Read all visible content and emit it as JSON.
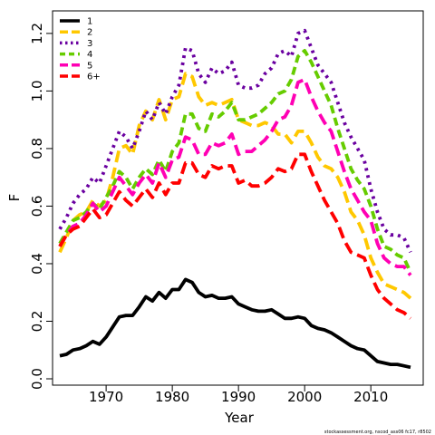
{
  "chart_data": {
    "type": "line",
    "title": "",
    "xlabel": "Year",
    "ylabel": "F",
    "xlim": [
      1963,
      2016
    ],
    "ylim": [
      0,
      1.25
    ],
    "x_ticks": [
      1970,
      1980,
      1990,
      2000,
      2010
    ],
    "y_ticks": [
      0.0,
      0.2,
      0.4,
      0.6,
      0.8,
      1.0,
      1.2
    ],
    "y_tick_labels": [
      "0.0",
      "0.2",
      "0.4",
      "0.6",
      "0.8",
      "1.0",
      "1.2"
    ],
    "grid": false,
    "legend_position": "top-left",
    "footnote": "stockassessment.org,  nscod_ass06  fc17, r8502",
    "series": [
      {
        "name": "1",
        "color": "#000000",
        "dash": "solid",
        "x": [
          1963,
          1964,
          1965,
          1966,
          1967,
          1968,
          1969,
          1970,
          1971,
          1972,
          1973,
          1974,
          1975,
          1976,
          1977,
          1978,
          1979,
          1980,
          1981,
          1982,
          1983,
          1984,
          1985,
          1986,
          1987,
          1988,
          1989,
          1990,
          1991,
          1992,
          1993,
          1994,
          1995,
          1996,
          1997,
          1998,
          1999,
          2000,
          2001,
          2002,
          2003,
          2004,
          2005,
          2006,
          2007,
          2008,
          2009,
          2010,
          2011,
          2012,
          2013,
          2014,
          2015,
          2016
        ],
        "y": [
          0.08,
          0.085,
          0.1,
          0.105,
          0.115,
          0.13,
          0.12,
          0.145,
          0.18,
          0.215,
          0.22,
          0.22,
          0.25,
          0.285,
          0.27,
          0.3,
          0.28,
          0.31,
          0.31,
          0.345,
          0.335,
          0.3,
          0.285,
          0.29,
          0.28,
          0.28,
          0.285,
          0.26,
          0.25,
          0.24,
          0.235,
          0.235,
          0.24,
          0.225,
          0.21,
          0.21,
          0.215,
          0.21,
          0.185,
          0.175,
          0.17,
          0.16,
          0.145,
          0.13,
          0.115,
          0.105,
          0.1,
          0.08,
          0.06,
          0.055,
          0.05,
          0.05,
          0.045,
          0.04
        ]
      },
      {
        "name": "2",
        "color": "#FFC800",
        "dash": "long",
        "x": [
          1963,
          1964,
          1965,
          1966,
          1967,
          1968,
          1969,
          1970,
          1971,
          1972,
          1973,
          1974,
          1975,
          1976,
          1977,
          1978,
          1979,
          1980,
          1981,
          1982,
          1983,
          1984,
          1985,
          1986,
          1987,
          1988,
          1989,
          1990,
          1991,
          1992,
          1993,
          1994,
          1995,
          1996,
          1997,
          1998,
          1999,
          2000,
          2001,
          2002,
          2003,
          2004,
          2005,
          2006,
          2007,
          2008,
          2009,
          2010,
          2011,
          2012,
          2013,
          2014,
          2015,
          2016
        ],
        "y": [
          0.44,
          0.49,
          0.55,
          0.57,
          0.58,
          0.62,
          0.6,
          0.62,
          0.7,
          0.8,
          0.81,
          0.78,
          0.88,
          0.93,
          0.9,
          0.97,
          0.9,
          0.97,
          0.98,
          1.06,
          1.05,
          0.98,
          0.95,
          0.96,
          0.95,
          0.96,
          0.97,
          0.9,
          0.89,
          0.88,
          0.88,
          0.89,
          0.88,
          0.85,
          0.85,
          0.82,
          0.86,
          0.86,
          0.82,
          0.77,
          0.74,
          0.73,
          0.7,
          0.65,
          0.58,
          0.55,
          0.5,
          0.42,
          0.37,
          0.33,
          0.32,
          0.31,
          0.3,
          0.28
        ]
      },
      {
        "name": "3",
        "color": "#6A00A0",
        "dash": "dotted",
        "x": [
          1963,
          1964,
          1965,
          1966,
          1967,
          1968,
          1969,
          1970,
          1971,
          1972,
          1973,
          1974,
          1975,
          1976,
          1977,
          1978,
          1979,
          1980,
          1981,
          1982,
          1983,
          1984,
          1985,
          1986,
          1987,
          1988,
          1989,
          1990,
          1991,
          1992,
          1993,
          1994,
          1995,
          1996,
          1997,
          1998,
          1999,
          2000,
          2001,
          2002,
          2003,
          2004,
          2005,
          2006,
          2007,
          2008,
          2009,
          2010,
          2011,
          2012,
          2013,
          2014,
          2015,
          2016
        ],
        "y": [
          0.52,
          0.56,
          0.61,
          0.64,
          0.66,
          0.7,
          0.68,
          0.74,
          0.8,
          0.86,
          0.84,
          0.8,
          0.86,
          0.93,
          0.9,
          0.96,
          0.92,
          0.98,
          1.02,
          1.15,
          1.14,
          1.06,
          1.03,
          1.08,
          1.06,
          1.07,
          1.1,
          1.02,
          1.01,
          1.01,
          1.02,
          1.06,
          1.08,
          1.13,
          1.14,
          1.12,
          1.2,
          1.21,
          1.15,
          1.09,
          1.06,
          1.03,
          0.96,
          0.89,
          0.84,
          0.8,
          0.76,
          0.66,
          0.58,
          0.52,
          0.5,
          0.5,
          0.49,
          0.44
        ]
      },
      {
        "name": "4",
        "color": "#66CC00",
        "dash": "dashed",
        "x": [
          1963,
          1964,
          1965,
          1966,
          1967,
          1968,
          1969,
          1970,
          1971,
          1972,
          1973,
          1974,
          1975,
          1976,
          1977,
          1978,
          1979,
          1980,
          1981,
          1982,
          1983,
          1984,
          1985,
          1986,
          1987,
          1988,
          1989,
          1990,
          1991,
          1992,
          1993,
          1994,
          1995,
          1996,
          1997,
          1998,
          1999,
          2000,
          2001,
          2002,
          2003,
          2004,
          2005,
          2006,
          2007,
          2008,
          2009,
          2010,
          2011,
          2012,
          2013,
          2014,
          2015,
          2016
        ],
        "y": [
          0.47,
          0.51,
          0.55,
          0.56,
          0.58,
          0.61,
          0.59,
          0.63,
          0.67,
          0.72,
          0.7,
          0.66,
          0.7,
          0.73,
          0.71,
          0.76,
          0.72,
          0.79,
          0.82,
          0.92,
          0.92,
          0.87,
          0.86,
          0.92,
          0.91,
          0.93,
          0.96,
          0.9,
          0.9,
          0.91,
          0.92,
          0.94,
          0.96,
          0.99,
          1.0,
          1.04,
          1.12,
          1.14,
          1.1,
          1.05,
          1.0,
          0.95,
          0.87,
          0.8,
          0.73,
          0.69,
          0.66,
          0.6,
          0.52,
          0.46,
          0.45,
          0.43,
          0.42,
          0.37
        ]
      },
      {
        "name": "5",
        "color": "#FF00B4",
        "dash": "long",
        "x": [
          1963,
          1964,
          1965,
          1966,
          1967,
          1968,
          1969,
          1970,
          1971,
          1972,
          1973,
          1974,
          1975,
          1976,
          1977,
          1978,
          1979,
          1980,
          1981,
          1982,
          1983,
          1984,
          1985,
          1986,
          1987,
          1988,
          1989,
          1990,
          1991,
          1992,
          1993,
          1994,
          1995,
          1996,
          1997,
          1998,
          1999,
          2000,
          2001,
          2002,
          2003,
          2004,
          2005,
          2006,
          2007,
          2008,
          2009,
          2010,
          2011,
          2012,
          2013,
          2014,
          2015,
          2016
        ],
        "y": [
          0.46,
          0.5,
          0.53,
          0.54,
          0.57,
          0.61,
          0.58,
          0.6,
          0.65,
          0.7,
          0.67,
          0.64,
          0.68,
          0.71,
          0.68,
          0.75,
          0.7,
          0.76,
          0.77,
          0.84,
          0.83,
          0.78,
          0.78,
          0.82,
          0.81,
          0.82,
          0.85,
          0.78,
          0.79,
          0.79,
          0.81,
          0.83,
          0.86,
          0.9,
          0.91,
          0.95,
          1.03,
          1.04,
          0.98,
          0.93,
          0.89,
          0.86,
          0.79,
          0.72,
          0.66,
          0.62,
          0.58,
          0.55,
          0.47,
          0.42,
          0.4,
          0.39,
          0.39,
          0.36
        ]
      },
      {
        "name": "6+",
        "color": "#FF0000",
        "dash": "long",
        "x": [
          1963,
          1964,
          1965,
          1966,
          1967,
          1968,
          1969,
          1970,
          1971,
          1972,
          1973,
          1974,
          1975,
          1976,
          1977,
          1978,
          1979,
          1980,
          1981,
          1982,
          1983,
          1984,
          1985,
          1986,
          1987,
          1988,
          1989,
          1990,
          1991,
          1992,
          1993,
          1994,
          1995,
          1996,
          1997,
          1998,
          1999,
          2000,
          2001,
          2002,
          2003,
          2004,
          2005,
          2006,
          2007,
          2008,
          2009,
          2010,
          2011,
          2012,
          2013,
          2014,
          2015,
          2016
        ],
        "y": [
          0.46,
          0.5,
          0.52,
          0.53,
          0.56,
          0.59,
          0.56,
          0.57,
          0.61,
          0.65,
          0.62,
          0.6,
          0.63,
          0.66,
          0.63,
          0.68,
          0.64,
          0.68,
          0.68,
          0.75,
          0.75,
          0.71,
          0.7,
          0.74,
          0.73,
          0.74,
          0.74,
          0.68,
          0.69,
          0.67,
          0.67,
          0.68,
          0.7,
          0.73,
          0.72,
          0.73,
          0.78,
          0.78,
          0.72,
          0.67,
          0.62,
          0.58,
          0.54,
          0.48,
          0.44,
          0.43,
          0.42,
          0.36,
          0.31,
          0.28,
          0.26,
          0.24,
          0.23,
          0.21
        ]
      }
    ]
  }
}
